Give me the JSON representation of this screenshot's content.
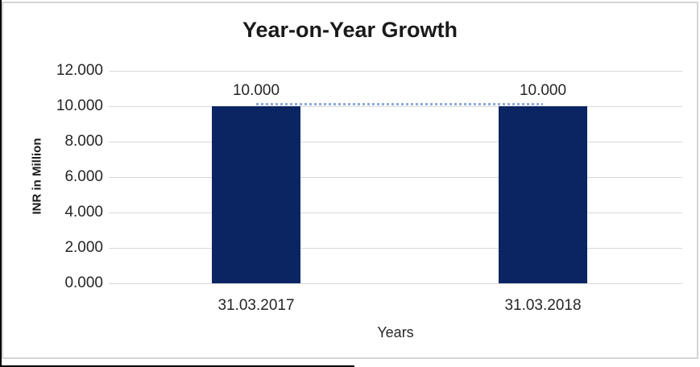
{
  "chart_data": {
    "type": "bar",
    "title": "Year-on-Year Growth",
    "xlabel": "Years",
    "ylabel": "INR in Million",
    "categories": [
      "31.03.2017",
      "31.03.2018"
    ],
    "series": [
      {
        "name": "INR in Million",
        "values": [
          10,
          10
        ]
      }
    ],
    "data_labels": [
      "10.000",
      "10.000"
    ],
    "y_ticks": {
      "values": [
        12,
        10,
        8,
        6,
        4,
        2,
        0
      ],
      "labels": [
        "12.000",
        "10.000",
        "8.000",
        "6.000",
        "4.000",
        "2.000",
        "0.000"
      ]
    },
    "ylim": [
      0,
      12
    ],
    "grid": true,
    "legend_position": "none",
    "trendline": {
      "style": "dotted",
      "description": "dotted line connecting the tops of the two bars at value 10",
      "y_value": 10
    },
    "colors": {
      "bar": "#0b2563",
      "trendline": "#8eaadb",
      "gridline": "#d9d9d9",
      "text": "#262626",
      "title_text": "#1a1a1a",
      "frame_border": "#d4d4d4",
      "outer_border": "#000000"
    }
  }
}
